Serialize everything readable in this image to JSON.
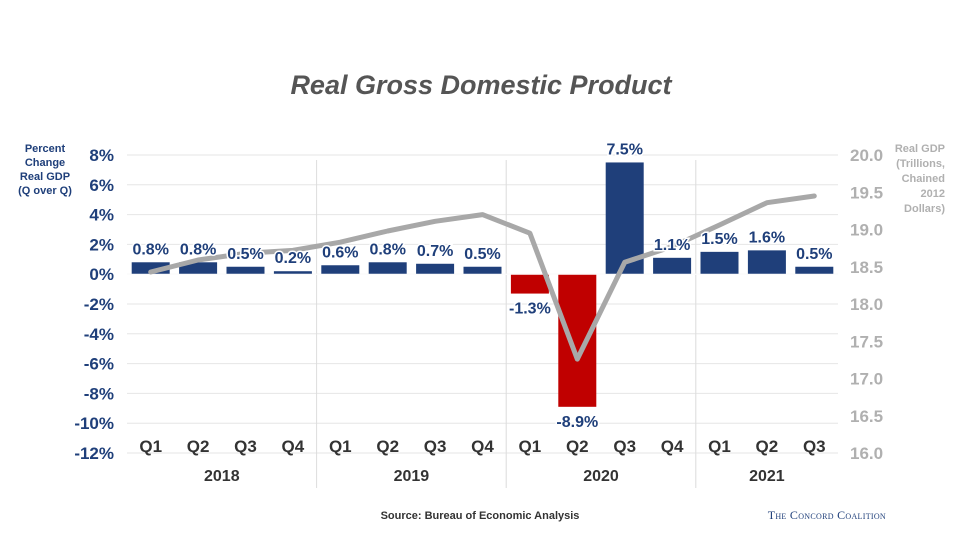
{
  "chart_data": {
    "type": "bar",
    "title": "Real Gross Domestic Product",
    "ylabel": [
      "Percent",
      "Change",
      "Real GDP",
      "(Q over Q)"
    ],
    "y2label": [
      "Real GDP",
      "(Trillions,",
      "Chained",
      "2012",
      "Dollars)"
    ],
    "ylim": [
      -12,
      8
    ],
    "y2lim": [
      16.0,
      20.0
    ],
    "y_ticks": [
      8,
      6,
      4,
      2,
      0,
      -2,
      -4,
      -6,
      -8,
      -10,
      -12
    ],
    "y_tick_labels": [
      "8%",
      "6%",
      "4%",
      "2%",
      "0%",
      "-2%",
      "-4%",
      "-6%",
      "-8%",
      "-10%",
      "-12%"
    ],
    "y2_ticks": [
      20.0,
      19.5,
      19.0,
      18.5,
      18.0,
      17.5,
      17.0,
      16.5,
      16.0
    ],
    "y2_tick_labels": [
      "20.0",
      "19.5",
      "19.0",
      "18.5",
      "18.0",
      "17.5",
      "17.0",
      "16.5",
      "16.0"
    ],
    "categories": [
      "Q1",
      "Q2",
      "Q3",
      "Q4",
      "Q1",
      "Q2",
      "Q3",
      "Q4",
      "Q1",
      "Q2",
      "Q3",
      "Q4",
      "Q1",
      "Q2",
      "Q3"
    ],
    "year_groups": [
      {
        "label": "2018",
        "quarters": 4
      },
      {
        "label": "2019",
        "quarters": 4
      },
      {
        "label": "2020",
        "quarters": 4
      },
      {
        "label": "2021",
        "quarters": 3
      }
    ],
    "series": [
      {
        "name": "Percent Change Real GDP (Q over Q)",
        "type": "bar",
        "axis": "left",
        "values": [
          0.8,
          0.8,
          0.5,
          0.2,
          0.6,
          0.8,
          0.7,
          0.5,
          -1.3,
          -8.9,
          7.5,
          1.1,
          1.5,
          1.6,
          0.5
        ],
        "labels": [
          "0.8%",
          "0.8%",
          "0.5%",
          "0.2%",
          "0.6%",
          "0.8%",
          "0.7%",
          "0.5%",
          "-1.3%",
          "-8.9%",
          "7.5%",
          "1.1%",
          "1.5%",
          "1.6%",
          "0.5%"
        ],
        "positive_color": "#1f3f7a",
        "negative_color": "#c00000"
      },
      {
        "name": "Real GDP (Trillions, Chained 2012 Dollars)",
        "type": "line",
        "axis": "right",
        "values": [
          18.43,
          18.59,
          18.68,
          18.72,
          18.83,
          18.98,
          19.11,
          19.2,
          18.95,
          17.26,
          18.56,
          18.77,
          19.06,
          19.36,
          19.45
        ],
        "color": "#a8a8a8"
      }
    ]
  },
  "footer": {
    "source": "Source: Bureau of Economic Analysis",
    "organization": "The Concord Coalition"
  }
}
